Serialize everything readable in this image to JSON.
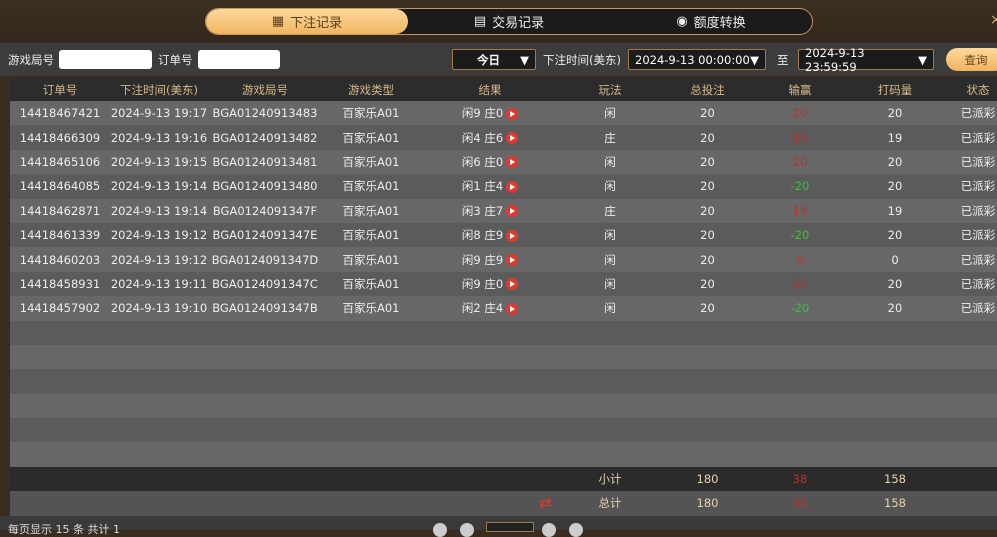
{
  "tabs": [
    {
      "label": "下注记录",
      "icon": "calendar-icon",
      "active": true
    },
    {
      "label": "交易记录",
      "icon": "clipboard-icon"
    },
    {
      "label": "额度转换",
      "icon": "coins-icon"
    }
  ],
  "close": "×",
  "filter": {
    "round_label": "游戏局号",
    "round_value": "",
    "order_label": "订单号",
    "order_value": "",
    "period": "今日",
    "time_label": "下注时间(美东)",
    "start": "2024-9-13 00:00:00",
    "to": "至",
    "end": "2024-9-13 23:59:59",
    "query": "查询"
  },
  "columns": [
    "订单号",
    "下注时间(美东)",
    "游戏局号",
    "游戏类型",
    "结果",
    "玩法",
    "总投注",
    "输赢",
    "打码量",
    "状态"
  ],
  "rows": [
    [
      "14418467421",
      "2024-9-13 19:17",
      "BGA01240913483",
      "百家乐A01",
      "闲9 庄0",
      "闲",
      "20",
      "20",
      "20",
      "已派彩"
    ],
    [
      "14418466309",
      "2024-9-13 19:16",
      "BGA01240913482",
      "百家乐A01",
      "闲4 庄6",
      "庄",
      "20",
      "19",
      "19",
      "已派彩"
    ],
    [
      "14418465106",
      "2024-9-13 19:15",
      "BGA01240913481",
      "百家乐A01",
      "闲6 庄0",
      "闲",
      "20",
      "20",
      "20",
      "已派彩"
    ],
    [
      "14418464085",
      "2024-9-13 19:14",
      "BGA01240913480",
      "百家乐A01",
      "闲1 庄4",
      "闲",
      "20",
      "-20",
      "20",
      "已派彩"
    ],
    [
      "14418462871",
      "2024-9-13 19:14",
      "BGA0124091347F",
      "百家乐A01",
      "闲3 庄7",
      "庄",
      "20",
      "19",
      "19",
      "已派彩"
    ],
    [
      "14418461339",
      "2024-9-13 19:12",
      "BGA0124091347E",
      "百家乐A01",
      "闲8 庄9",
      "闲",
      "20",
      "-20",
      "20",
      "已派彩"
    ],
    [
      "14418460203",
      "2024-9-13 19:12",
      "BGA0124091347D",
      "百家乐A01",
      "闲9 庄9",
      "闲",
      "20",
      "0",
      "0",
      "已派彩"
    ],
    [
      "14418458931",
      "2024-9-13 19:11",
      "BGA0124091347C",
      "百家乐A01",
      "闲9 庄0",
      "闲",
      "20",
      "20",
      "20",
      "已派彩"
    ],
    [
      "14418457902",
      "2024-9-13 19:10",
      "BGA0124091347B",
      "百家乐A01",
      "闲2 庄4",
      "闲",
      "20",
      "-20",
      "20",
      "已派彩"
    ]
  ],
  "subtotal": {
    "label": "小计",
    "bet": "180",
    "win": "38",
    "turnover": "158"
  },
  "total": {
    "label": "总计",
    "bet": "180",
    "win": "38",
    "turnover": "158"
  },
  "footer": {
    "text": "每页显示 15 条 共计 1"
  },
  "colors": {
    "win": "#c0302a",
    "loss": "#35c635",
    "accent": "#f0b561"
  }
}
